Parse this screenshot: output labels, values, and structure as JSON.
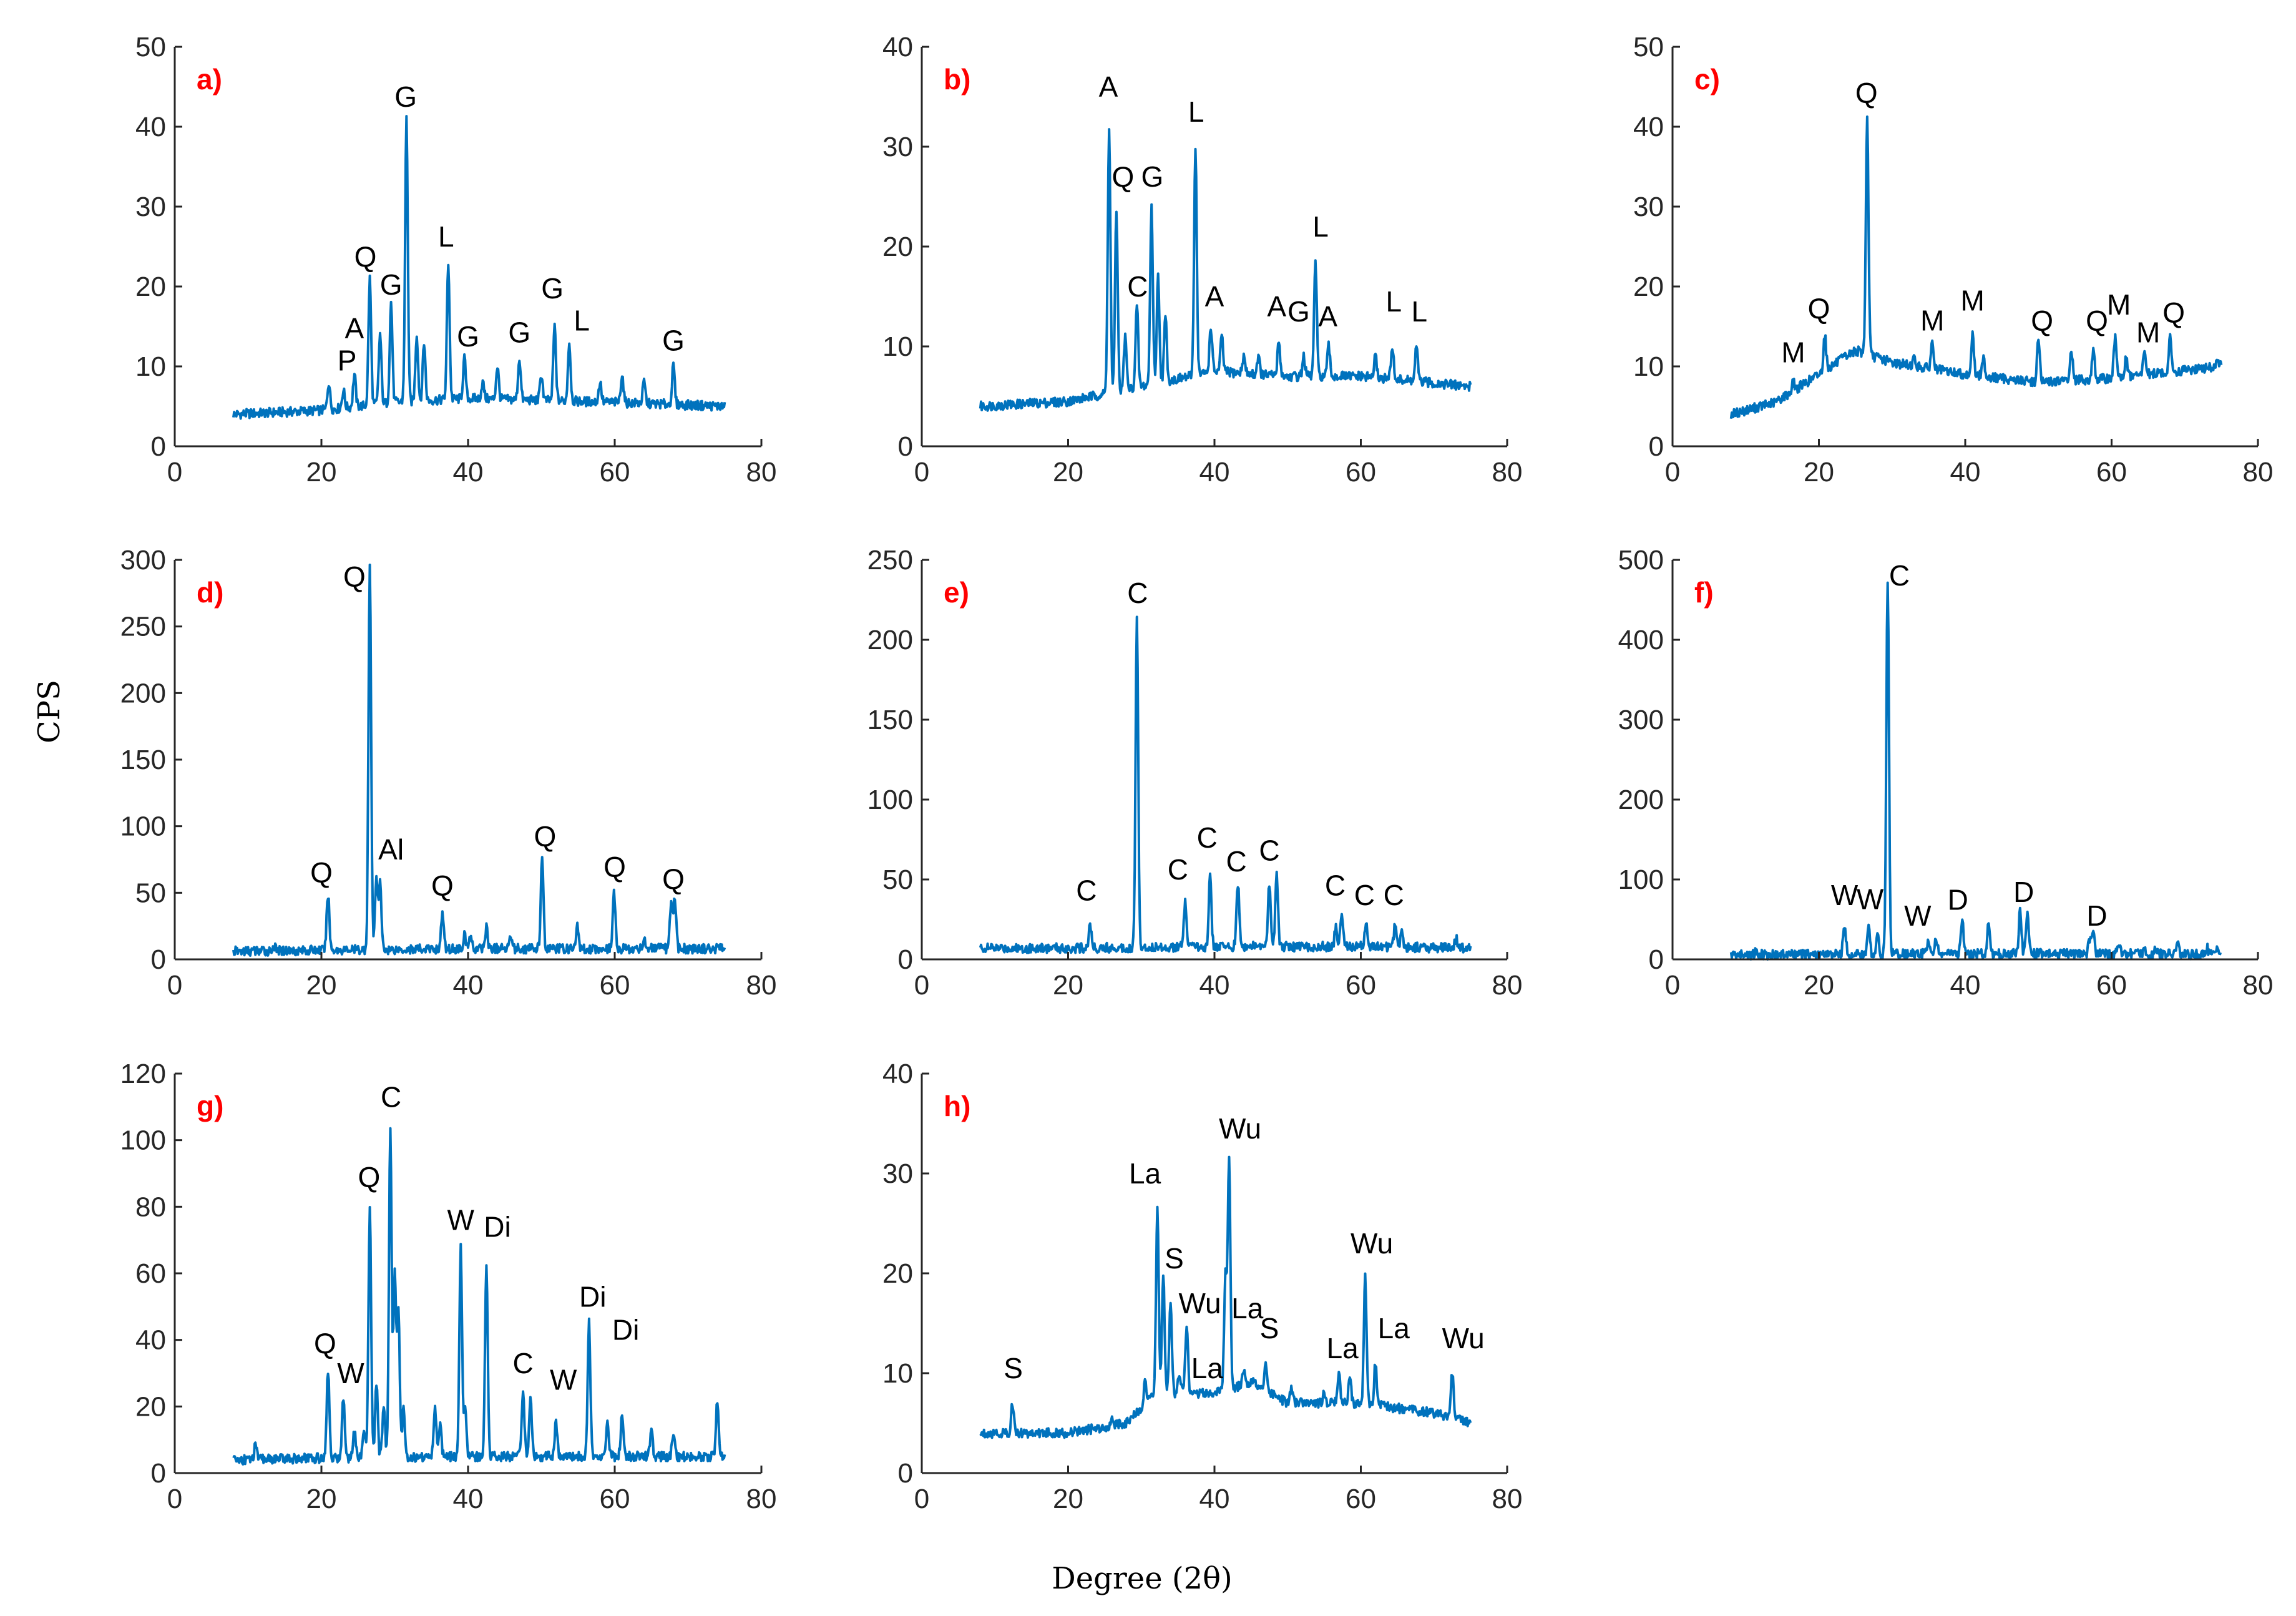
{
  "figure": {
    "ylabel": "CPS",
    "xlabel": "Degree (2θ)",
    "colors": {
      "trace": "#0072bd",
      "panel_label": "#ff0000",
      "axes": "#262626"
    }
  },
  "chart_data": [
    {
      "type": "line",
      "panel": "a)",
      "xlim": [
        0,
        80
      ],
      "ylim": [
        0,
        50
      ],
      "xticks": [
        0,
        20,
        40,
        60,
        80
      ],
      "yticks": [
        0,
        10,
        20,
        30,
        40,
        50
      ],
      "baseline": [
        [
          8,
          4
        ],
        [
          20,
          4.5
        ],
        [
          30,
          5.5
        ],
        [
          40,
          6
        ],
        [
          60,
          5.5
        ],
        [
          75,
          5
        ]
      ],
      "peaks": [
        [
          21,
          8
        ],
        [
          23,
          7
        ],
        [
          24.5,
          9
        ],
        [
          26.6,
          21
        ],
        [
          28,
          14
        ],
        [
          29.5,
          18
        ],
        [
          31.6,
          41
        ],
        [
          33,
          14
        ],
        [
          34,
          13
        ],
        [
          37.3,
          23
        ],
        [
          39.5,
          11
        ],
        [
          42,
          8
        ],
        [
          44,
          10
        ],
        [
          47,
          11
        ],
        [
          50,
          9
        ],
        [
          51.8,
          15
        ],
        [
          53.8,
          13
        ],
        [
          58,
          8
        ],
        [
          61,
          9
        ],
        [
          64,
          8
        ],
        [
          68,
          10
        ]
      ],
      "labels": [
        {
          "text": "P",
          "x": 23.5,
          "y": 9.5
        },
        {
          "text": "A",
          "x": 24.5,
          "y": 13.5
        },
        {
          "text": "Q",
          "x": 26,
          "y": 22.5
        },
        {
          "text": "G",
          "x": 29.5,
          "y": 19
        },
        {
          "text": "G",
          "x": 31.5,
          "y": 42.5
        },
        {
          "text": "L",
          "x": 37,
          "y": 25
        },
        {
          "text": "G",
          "x": 40,
          "y": 12.5
        },
        {
          "text": "G",
          "x": 47,
          "y": 13
        },
        {
          "text": "G",
          "x": 51.5,
          "y": 18.5
        },
        {
          "text": "L",
          "x": 55.5,
          "y": 14.5
        },
        {
          "text": "G",
          "x": 68,
          "y": 12
        }
      ]
    },
    {
      "type": "line",
      "panel": "b)",
      "xlim": [
        0,
        80
      ],
      "ylim": [
        0,
        40
      ],
      "xticks": [
        0,
        20,
        40,
        60,
        80
      ],
      "yticks": [
        0,
        10,
        20,
        30,
        40
      ],
      "baseline": [
        [
          8,
          4
        ],
        [
          20,
          4.5
        ],
        [
          30,
          6
        ],
        [
          40,
          7.5
        ],
        [
          50,
          7
        ],
        [
          60,
          7
        ],
        [
          75,
          6
        ]
      ],
      "peaks": [
        [
          25.6,
          32
        ],
        [
          26.6,
          23.5
        ],
        [
          27.8,
          11
        ],
        [
          29.4,
          14
        ],
        [
          31.4,
          24
        ],
        [
          32.3,
          17
        ],
        [
          33.3,
          13
        ],
        [
          37.4,
          30
        ],
        [
          39.5,
          12
        ],
        [
          41,
          11
        ],
        [
          44,
          9
        ],
        [
          46,
          9
        ],
        [
          48.8,
          10.5
        ],
        [
          52.2,
          9
        ],
        [
          53.8,
          18.5
        ],
        [
          55.6,
          10
        ],
        [
          62,
          9
        ],
        [
          64.3,
          10
        ],
        [
          67.6,
          10
        ]
      ],
      "labels": [
        {
          "text": "A",
          "x": 25.5,
          "y": 35
        },
        {
          "text": "Q",
          "x": 27.5,
          "y": 26
        },
        {
          "text": "G",
          "x": 31.5,
          "y": 26
        },
        {
          "text": "C",
          "x": 29.5,
          "y": 15
        },
        {
          "text": "L",
          "x": 37.5,
          "y": 32.5
        },
        {
          "text": "A",
          "x": 40,
          "y": 14
        },
        {
          "text": "A",
          "x": 48.5,
          "y": 13
        },
        {
          "text": "G",
          "x": 51.5,
          "y": 12.5
        },
        {
          "text": "A",
          "x": 55.5,
          "y": 12
        },
        {
          "text": "L",
          "x": 54.5,
          "y": 21
        },
        {
          "text": "L",
          "x": 64.5,
          "y": 13.5
        },
        {
          "text": "L",
          "x": 68,
          "y": 12.5
        }
      ]
    },
    {
      "type": "line",
      "panel": "c)",
      "xlim": [
        0,
        80
      ],
      "ylim": [
        0,
        50
      ],
      "xticks": [
        0,
        20,
        40,
        60,
        80
      ],
      "yticks": [
        0,
        10,
        20,
        30,
        40,
        50
      ],
      "baseline": [
        [
          8,
          4
        ],
        [
          14,
          5.5
        ],
        [
          20,
          9
        ],
        [
          25,
          12
        ],
        [
          30,
          10.5
        ],
        [
          40,
          9
        ],
        [
          50,
          8
        ],
        [
          60,
          8.5
        ],
        [
          75,
          10
        ]
      ],
      "peaks": [
        [
          16.5,
          8
        ],
        [
          20.8,
          14
        ],
        [
          26.6,
          41
        ],
        [
          33,
          11
        ],
        [
          35.5,
          13
        ],
        [
          41,
          14
        ],
        [
          42.5,
          11
        ],
        [
          50,
          13.5
        ],
        [
          54.5,
          12
        ],
        [
          57.5,
          12
        ],
        [
          60.5,
          14
        ],
        [
          62,
          11
        ],
        [
          64.5,
          12
        ],
        [
          68,
          13.5
        ],
        [
          74.5,
          11
        ]
      ],
      "labels": [
        {
          "text": "M",
          "x": 16.5,
          "y": 10.5
        },
        {
          "text": "Q",
          "x": 20,
          "y": 16
        },
        {
          "text": "Q",
          "x": 26.5,
          "y": 43
        },
        {
          "text": "M",
          "x": 35.5,
          "y": 14.5
        },
        {
          "text": "M",
          "x": 41,
          "y": 17
        },
        {
          "text": "Q",
          "x": 50.5,
          "y": 14.5
        },
        {
          "text": "Q",
          "x": 58,
          "y": 14.5
        },
        {
          "text": "M",
          "x": 61,
          "y": 16.5
        },
        {
          "text": "M",
          "x": 65,
          "y": 13
        },
        {
          "text": "Q",
          "x": 68.5,
          "y": 15.5
        }
      ]
    },
    {
      "type": "line",
      "panel": "d)",
      "xlim": [
        0,
        80
      ],
      "ylim": [
        0,
        300
      ],
      "xticks": [
        0,
        20,
        40,
        60,
        80
      ],
      "yticks": [
        0,
        50,
        100,
        150,
        200,
        250,
        300
      ],
      "baseline": [
        [
          8,
          6
        ],
        [
          20,
          7
        ],
        [
          40,
          8
        ],
        [
          60,
          8
        ],
        [
          75,
          8
        ]
      ],
      "peaks": [
        [
          13.5,
          10
        ],
        [
          20.9,
          49
        ],
        [
          26.6,
          295
        ],
        [
          27.5,
          62
        ],
        [
          28,
          56
        ],
        [
          36.5,
          34
        ],
        [
          39.5,
          18
        ],
        [
          40.3,
          17
        ],
        [
          42.5,
          24
        ],
        [
          45.8,
          20
        ],
        [
          50.1,
          75
        ],
        [
          54.9,
          24
        ],
        [
          59.9,
          50
        ],
        [
          64,
          16
        ],
        [
          67.7,
          40
        ],
        [
          68.2,
          45
        ]
      ],
      "labels": [
        {
          "text": "Q",
          "x": 20,
          "y": 58
        },
        {
          "text": "Q",
          "x": 24.5,
          "y": 280
        },
        {
          "text": "Al",
          "x": 29.5,
          "y": 75
        },
        {
          "text": "Q",
          "x": 36.5,
          "y": 48
        },
        {
          "text": "Q",
          "x": 50.5,
          "y": 85
        },
        {
          "text": "Q",
          "x": 60,
          "y": 62
        },
        {
          "text": "Q",
          "x": 68,
          "y": 53
        }
      ]
    },
    {
      "type": "line",
      "panel": "e)",
      "xlim": [
        0,
        80
      ],
      "ylim": [
        0,
        250
      ],
      "xticks": [
        0,
        20,
        40,
        60,
        80
      ],
      "yticks": [
        0,
        50,
        100,
        150,
        200,
        250
      ],
      "baseline": [
        [
          8,
          7
        ],
        [
          20,
          7
        ],
        [
          40,
          8
        ],
        [
          60,
          8
        ],
        [
          75,
          7
        ]
      ],
      "peaks": [
        [
          23,
          22
        ],
        [
          29.4,
          212
        ],
        [
          36,
          36
        ],
        [
          39.4,
          51
        ],
        [
          43.2,
          48
        ],
        [
          47.5,
          48
        ],
        [
          48.5,
          55
        ],
        [
          56.6,
          20
        ],
        [
          57.4,
          30
        ],
        [
          60.7,
          22
        ],
        [
          64.7,
          22
        ],
        [
          65.6,
          18
        ],
        [
          73,
          13
        ]
      ],
      "labels": [
        {
          "text": "C",
          "x": 22.5,
          "y": 37
        },
        {
          "text": "C",
          "x": 29.5,
          "y": 223
        },
        {
          "text": "C",
          "x": 35,
          "y": 50
        },
        {
          "text": "C",
          "x": 39,
          "y": 70
        },
        {
          "text": "C",
          "x": 43,
          "y": 55
        },
        {
          "text": "C",
          "x": 47.5,
          "y": 62
        },
        {
          "text": "C",
          "x": 56.5,
          "y": 40
        },
        {
          "text": "C",
          "x": 60.5,
          "y": 34
        },
        {
          "text": "C",
          "x": 64.5,
          "y": 34
        }
      ]
    },
    {
      "type": "line",
      "panel": "f)",
      "xlim": [
        0,
        80
      ],
      "ylim": [
        0,
        500
      ],
      "xticks": [
        0,
        20,
        40,
        60,
        80
      ],
      "yticks": [
        0,
        100,
        200,
        300,
        400,
        500
      ],
      "baseline": [
        [
          8,
          6
        ],
        [
          20,
          6
        ],
        [
          40,
          7
        ],
        [
          60,
          7
        ],
        [
          75,
          6
        ]
      ],
      "peaks": [
        [
          11.5,
          10
        ],
        [
          23.5,
          45
        ],
        [
          26.8,
          38
        ],
        [
          28,
          30
        ],
        [
          29.4,
          475
        ],
        [
          35,
          25
        ],
        [
          36,
          28
        ],
        [
          39.6,
          45
        ],
        [
          43.2,
          45
        ],
        [
          47.5,
          60
        ],
        [
          48.5,
          55
        ],
        [
          57,
          25
        ],
        [
          57.5,
          30
        ],
        [
          61,
          20
        ],
        [
          64.5,
          15
        ],
        [
          66,
          15
        ],
        [
          69,
          20
        ],
        [
          73,
          15
        ],
        [
          74.5,
          18
        ]
      ],
      "labels": [
        {
          "text": "W",
          "x": 23.5,
          "y": 68
        },
        {
          "text": "W",
          "x": 27,
          "y": 63
        },
        {
          "text": "C",
          "x": 31,
          "y": 468
        },
        {
          "text": "W",
          "x": 33.5,
          "y": 42
        },
        {
          "text": "D",
          "x": 39,
          "y": 62
        },
        {
          "text": "D",
          "x": 48,
          "y": 72
        },
        {
          "text": "D",
          "x": 58,
          "y": 42
        }
      ]
    },
    {
      "type": "line",
      "panel": "g)",
      "xlim": [
        0,
        80
      ],
      "ylim": [
        0,
        120
      ],
      "xticks": [
        0,
        20,
        40,
        60,
        80
      ],
      "yticks": [
        0,
        20,
        40,
        60,
        80,
        100,
        120
      ],
      "baseline": [
        [
          8,
          4
        ],
        [
          20,
          4.5
        ],
        [
          40,
          5
        ],
        [
          60,
          5
        ],
        [
          75,
          5
        ]
      ],
      "peaks": [
        [
          11,
          8
        ],
        [
          20.9,
          31
        ],
        [
          23,
          23
        ],
        [
          24.5,
          12
        ],
        [
          25.8,
          14
        ],
        [
          26.6,
          80
        ],
        [
          27.5,
          27
        ],
        [
          28.5,
          20
        ],
        [
          29.4,
          104
        ],
        [
          30,
          60
        ],
        [
          30.5,
          48
        ],
        [
          31.2,
          20
        ],
        [
          35.5,
          20
        ],
        [
          36.2,
          14
        ],
        [
          39,
          68
        ],
        [
          39.6,
          20
        ],
        [
          42.5,
          63
        ],
        [
          47.5,
          24
        ],
        [
          48.5,
          22
        ],
        [
          52,
          15
        ],
        [
          56.5,
          45
        ],
        [
          59,
          15
        ],
        [
          61,
          17
        ],
        [
          65,
          12
        ],
        [
          68,
          12
        ],
        [
          74,
          22
        ]
      ],
      "labels": [
        {
          "text": "Q",
          "x": 20.5,
          "y": 36
        },
        {
          "text": "W",
          "x": 24,
          "y": 27
        },
        {
          "text": "Q",
          "x": 26.5,
          "y": 86
        },
        {
          "text": "C",
          "x": 29.5,
          "y": 110
        },
        {
          "text": "W",
          "x": 39,
          "y": 73
        },
        {
          "text": "Di",
          "x": 44,
          "y": 71
        },
        {
          "text": "C",
          "x": 47.5,
          "y": 30
        },
        {
          "text": "W",
          "x": 53,
          "y": 25
        },
        {
          "text": "Di",
          "x": 57,
          "y": 50
        },
        {
          "text": "Di",
          "x": 61.5,
          "y": 40
        }
      ]
    },
    {
      "type": "line",
      "panel": "h)",
      "xlim": [
        0,
        80
      ],
      "ylim": [
        0,
        40
      ],
      "xticks": [
        0,
        20,
        40,
        60,
        80
      ],
      "yticks": [
        0,
        10,
        20,
        30,
        40
      ],
      "baseline": [
        [
          8,
          4
        ],
        [
          20,
          4
        ],
        [
          28,
          5
        ],
        [
          32,
          8
        ],
        [
          40,
          8
        ],
        [
          45,
          9
        ],
        [
          50,
          7
        ],
        [
          55,
          7
        ],
        [
          60,
          7
        ],
        [
          70,
          6
        ],
        [
          75,
          5
        ]
      ],
      "peaks": [
        [
          12.4,
          7
        ],
        [
          26,
          5.5
        ],
        [
          30.5,
          9
        ],
        [
          32.2,
          26.5
        ],
        [
          33,
          20
        ],
        [
          34,
          17
        ],
        [
          35.2,
          10
        ],
        [
          36.2,
          15
        ],
        [
          38.5,
          8
        ],
        [
          41.5,
          20
        ],
        [
          42,
          31
        ],
        [
          44,
          10
        ],
        [
          45.5,
          9.5
        ],
        [
          47,
          11
        ],
        [
          50.5,
          8.5
        ],
        [
          55,
          8
        ],
        [
          57,
          10
        ],
        [
          58.5,
          10
        ],
        [
          60.6,
          19.5
        ],
        [
          62,
          11
        ],
        [
          72.5,
          10
        ]
      ],
      "labels": [
        {
          "text": "S",
          "x": 12.5,
          "y": 9.5
        },
        {
          "text": "La",
          "x": 30.5,
          "y": 29
        },
        {
          "text": "S",
          "x": 34.5,
          "y": 20.5
        },
        {
          "text": "Wu",
          "x": 38,
          "y": 16
        },
        {
          "text": "La",
          "x": 39,
          "y": 9.5
        },
        {
          "text": "Wu",
          "x": 43.5,
          "y": 33.5
        },
        {
          "text": "La",
          "x": 44.5,
          "y": 15.5
        },
        {
          "text": "S",
          "x": 47.5,
          "y": 13.5
        },
        {
          "text": "La",
          "x": 57.5,
          "y": 11.5
        },
        {
          "text": "Wu",
          "x": 61.5,
          "y": 22
        },
        {
          "text": "La",
          "x": 64.5,
          "y": 13.5
        },
        {
          "text": "Wu",
          "x": 74,
          "y": 12.5
        }
      ]
    }
  ]
}
